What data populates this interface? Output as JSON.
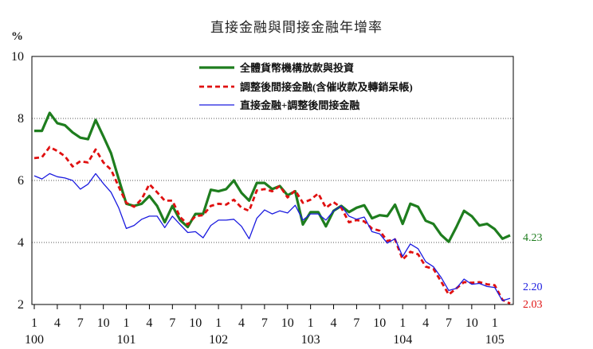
{
  "chart_data": {
    "type": "line",
    "title": "直接金融與間接金融年增率",
    "ylabel": "%",
    "ylim": [
      2,
      10
    ],
    "yticks": [
      2,
      4,
      6,
      8,
      10
    ],
    "grid_values": [
      4,
      6,
      8
    ],
    "x_ticks": [
      {
        "i": 0,
        "month": "1",
        "year": "100"
      },
      {
        "i": 3,
        "month": "4",
        "year": ""
      },
      {
        "i": 6,
        "month": "7",
        "year": ""
      },
      {
        "i": 9,
        "month": "10",
        "year": ""
      },
      {
        "i": 12,
        "month": "1",
        "year": "101"
      },
      {
        "i": 15,
        "month": "4",
        "year": ""
      },
      {
        "i": 18,
        "month": "7",
        "year": ""
      },
      {
        "i": 21,
        "month": "10",
        "year": ""
      },
      {
        "i": 24,
        "month": "1",
        "year": "102"
      },
      {
        "i": 27,
        "month": "4",
        "year": ""
      },
      {
        "i": 30,
        "month": "7",
        "year": ""
      },
      {
        "i": 33,
        "month": "10",
        "year": ""
      },
      {
        "i": 36,
        "month": "1",
        "year": "103"
      },
      {
        "i": 39,
        "month": "4",
        "year": ""
      },
      {
        "i": 42,
        "month": "7",
        "year": ""
      },
      {
        "i": 45,
        "month": "10",
        "year": ""
      },
      {
        "i": 48,
        "month": "1",
        "year": "104"
      },
      {
        "i": 51,
        "month": "4",
        "year": ""
      },
      {
        "i": 54,
        "month": "7",
        "year": ""
      },
      {
        "i": 57,
        "month": "10",
        "year": ""
      },
      {
        "i": 60,
        "month": "1",
        "year": "105"
      }
    ],
    "legend_position": "top-right",
    "series": [
      {
        "name": "全體貨幣機構放款與投資",
        "color": "#1e7d1e",
        "style": "solid-thick",
        "end_label": "4.23",
        "values": [
          7.6,
          7.6,
          8.18,
          7.85,
          7.78,
          7.55,
          7.38,
          7.33,
          7.95,
          7.42,
          6.88,
          6.05,
          5.25,
          5.18,
          5.25,
          5.5,
          5.18,
          4.65,
          5.18,
          4.72,
          4.5,
          4.92,
          4.92,
          5.7,
          5.65,
          5.72,
          6.0,
          5.6,
          5.35,
          5.92,
          5.92,
          5.72,
          5.82,
          5.52,
          5.65,
          4.58,
          4.98,
          4.98,
          4.52,
          5.02,
          5.18,
          4.98,
          5.12,
          5.2,
          4.78,
          4.88,
          4.85,
          5.22,
          4.6,
          5.25,
          5.15,
          4.7,
          4.6,
          4.25,
          4.02,
          4.5,
          5.02,
          4.85,
          4.55,
          4.6,
          4.43,
          4.12,
          4.23
        ]
      },
      {
        "name": "調整後間接金融(含催收款及轉銷呆帳)",
        "color": "#e01010",
        "style": "dashed",
        "end_label": "2.03",
        "values": [
          6.72,
          6.75,
          7.08,
          6.95,
          6.78,
          6.45,
          6.62,
          6.58,
          7.0,
          6.58,
          6.35,
          5.8,
          5.28,
          5.15,
          5.4,
          5.88,
          5.62,
          5.35,
          5.35,
          4.82,
          4.58,
          4.85,
          4.88,
          5.18,
          5.25,
          5.22,
          5.38,
          5.12,
          5.02,
          5.68,
          5.72,
          5.65,
          5.82,
          5.45,
          5.68,
          5.28,
          5.38,
          5.58,
          5.12,
          5.3,
          5.12,
          4.65,
          4.72,
          4.68,
          4.45,
          4.38,
          4.05,
          4.1,
          3.45,
          3.7,
          3.62,
          3.22,
          3.15,
          2.75,
          2.32,
          2.52,
          2.72,
          2.7,
          2.72,
          2.65,
          2.62,
          2.15,
          2.03
        ]
      },
      {
        "name": "直接金融+調整後間接金融",
        "color": "#1a1adf",
        "style": "solid-thin",
        "end_label": "2.20",
        "values": [
          6.15,
          6.05,
          6.22,
          6.12,
          6.08,
          6.0,
          5.72,
          5.88,
          6.22,
          5.9,
          5.62,
          5.12,
          4.45,
          4.55,
          4.75,
          4.85,
          4.85,
          4.48,
          4.85,
          4.58,
          4.32,
          4.35,
          4.15,
          4.55,
          4.72,
          4.72,
          4.75,
          4.52,
          4.12,
          4.78,
          5.05,
          4.92,
          5.02,
          4.95,
          5.2,
          4.72,
          4.92,
          4.92,
          4.72,
          5.02,
          5.18,
          4.85,
          4.75,
          4.82,
          4.35,
          4.28,
          3.98,
          4.12,
          3.55,
          3.95,
          3.8,
          3.38,
          3.22,
          2.88,
          2.45,
          2.52,
          2.82,
          2.65,
          2.68,
          2.58,
          2.55,
          2.12,
          2.2
        ]
      }
    ]
  }
}
